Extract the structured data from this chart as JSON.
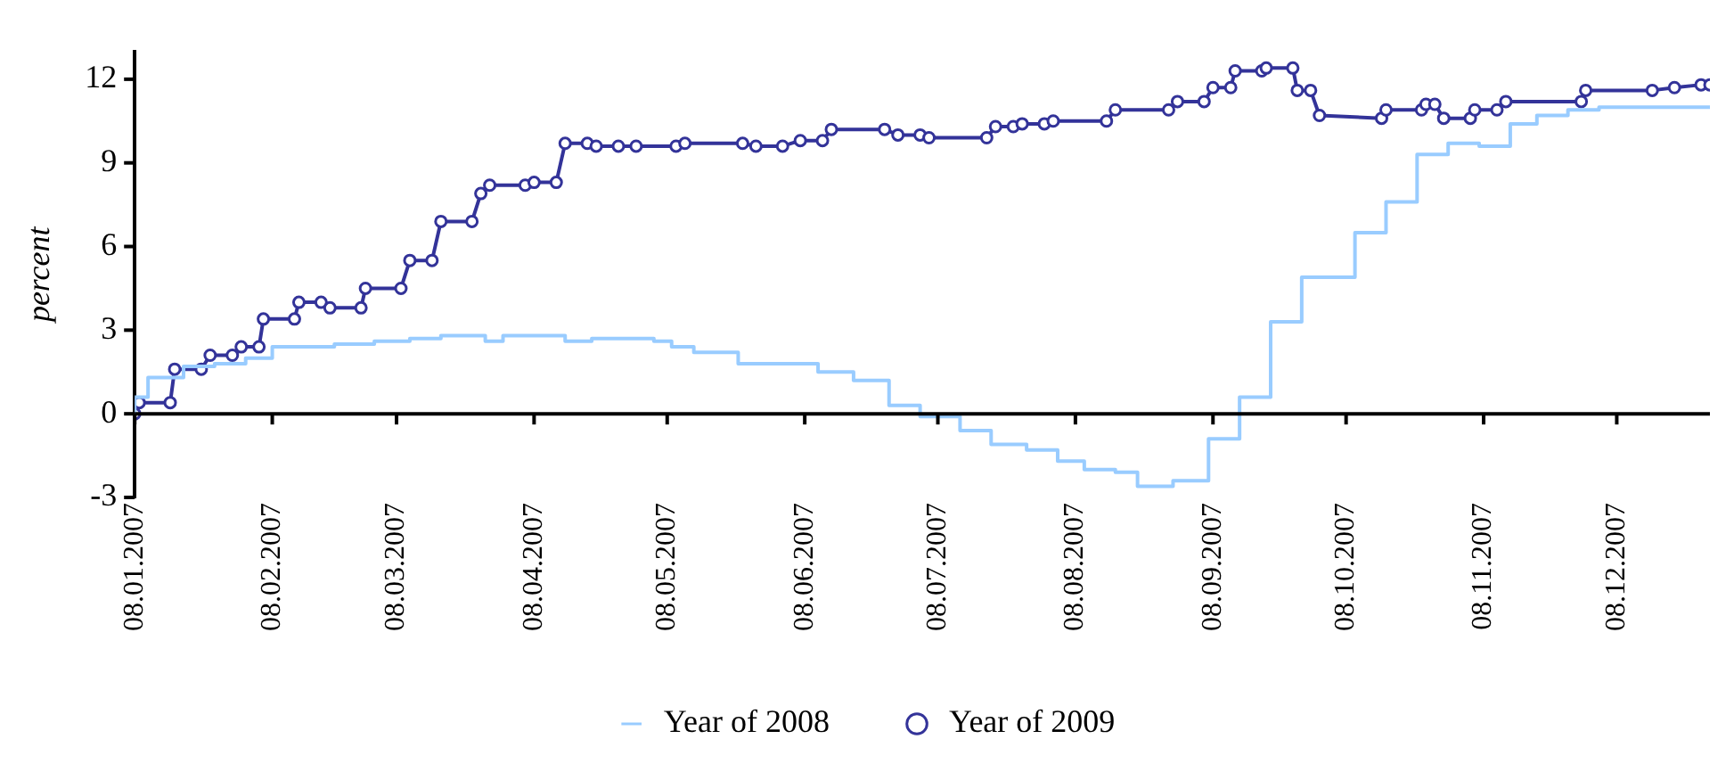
{
  "chart_data": {
    "type": "line",
    "ylabel": "percent",
    "xlim": [
      "2007-01-08",
      "2007-12-29"
    ],
    "xticks": [
      {
        "value": "2007-01-08",
        "label": "08.01.2007"
      },
      {
        "value": "2007-02-08",
        "label": "08.02.2007"
      },
      {
        "value": "2007-03-08",
        "label": "08.03.2007"
      },
      {
        "value": "2007-04-08",
        "label": "08.04.2007"
      },
      {
        "value": "2007-05-08",
        "label": "08.05.2007"
      },
      {
        "value": "2007-06-08",
        "label": "08.06.2007"
      },
      {
        "value": "2007-07-08",
        "label": "08.07.2007"
      },
      {
        "value": "2007-08-08",
        "label": "08.08.2007"
      },
      {
        "value": "2007-09-08",
        "label": "08.09.2007"
      },
      {
        "value": "2007-10-08",
        "label": "08.10.2007"
      },
      {
        "value": "2007-11-08",
        "label": "08.11.2007"
      },
      {
        "value": "2007-12-08",
        "label": "08.12.2007"
      }
    ],
    "ylim": [
      -3,
      13
    ],
    "yticks": [
      -3,
      0,
      3,
      6,
      9,
      12
    ],
    "legend": "bottom",
    "series": [
      {
        "name": "Year of 2008",
        "type": "step",
        "color": "#99ccff",
        "marker": "none",
        "x": [
          "2007-01-08",
          "2007-01-11",
          "2007-01-19",
          "2007-01-26",
          "2007-02-02",
          "2007-02-08",
          "2007-02-22",
          "2007-03-03",
          "2007-03-11",
          "2007-03-18",
          "2007-03-28",
          "2007-04-01",
          "2007-04-15",
          "2007-04-21",
          "2007-05-05",
          "2007-05-09",
          "2007-05-14",
          "2007-05-24",
          "2007-06-11",
          "2007-06-19",
          "2007-06-27",
          "2007-07-04",
          "2007-07-13",
          "2007-07-20",
          "2007-07-28",
          "2007-08-04",
          "2007-08-10",
          "2007-08-17",
          "2007-08-22",
          "2007-08-30",
          "2007-09-07",
          "2007-09-14",
          "2007-09-21",
          "2007-09-28",
          "2007-10-10",
          "2007-10-17",
          "2007-10-24",
          "2007-10-31",
          "2007-11-07",
          "2007-11-14",
          "2007-11-20",
          "2007-11-27",
          "2007-12-04",
          "2007-12-10",
          "2007-12-29"
        ],
        "values": [
          0,
          0.6,
          1.3,
          1.7,
          1.8,
          2.0,
          2.4,
          2.5,
          2.6,
          2.7,
          2.8,
          2.6,
          2.8,
          2.6,
          2.7,
          2.6,
          2.4,
          2.2,
          1.8,
          1.5,
          1.2,
          0.3,
          -0.1,
          -0.6,
          -1.1,
          -1.3,
          -1.7,
          -2.0,
          -2.1,
          -2.6,
          -2.4,
          -0.9,
          0.6,
          3.3,
          4.9,
          6.5,
          7.6,
          9.3,
          9.7,
          9.6,
          10.4,
          10.7,
          10.9,
          11.0,
          11.0
        ]
      },
      {
        "name": "Year of 2009",
        "type": "line",
        "color": "#333399",
        "marker": "circle",
        "x": [
          "2007-01-08",
          "2007-01-09",
          "2007-01-16",
          "2007-01-17",
          "2007-01-23",
          "2007-01-25",
          "2007-01-30",
          "2007-02-01",
          "2007-02-05",
          "2007-02-06",
          "2007-02-13",
          "2007-02-14",
          "2007-02-19",
          "2007-02-21",
          "2007-02-28",
          "2007-03-01",
          "2007-03-09",
          "2007-03-11",
          "2007-03-16",
          "2007-03-18",
          "2007-03-25",
          "2007-03-27",
          "2007-03-29",
          "2007-04-06",
          "2007-04-08",
          "2007-04-13",
          "2007-04-15",
          "2007-04-20",
          "2007-04-22",
          "2007-04-27",
          "2007-05-01",
          "2007-05-10",
          "2007-05-12",
          "2007-05-25",
          "2007-05-28",
          "2007-06-03",
          "2007-06-07",
          "2007-06-12",
          "2007-06-14",
          "2007-06-26",
          "2007-06-29",
          "2007-07-04",
          "2007-07-06",
          "2007-07-19",
          "2007-07-21",
          "2007-07-25",
          "2007-07-27",
          "2007-08-01",
          "2007-08-03",
          "2007-08-15",
          "2007-08-17",
          "2007-08-29",
          "2007-08-31",
          "2007-09-06",
          "2007-09-08",
          "2007-09-12",
          "2007-09-13",
          "2007-09-19",
          "2007-09-20",
          "2007-09-26",
          "2007-09-27",
          "2007-09-30",
          "2007-10-02",
          "2007-10-16",
          "2007-10-17",
          "2007-10-25",
          "2007-10-26",
          "2007-10-28",
          "2007-10-30",
          "2007-11-05",
          "2007-11-06",
          "2007-11-11",
          "2007-11-13",
          "2007-11-30",
          "2007-12-01",
          "2007-12-16",
          "2007-12-21",
          "2007-12-27",
          "2007-12-29"
        ],
        "values": [
          0,
          0.4,
          0.4,
          1.6,
          1.6,
          2.1,
          2.1,
          2.4,
          2.4,
          3.4,
          3.4,
          4.0,
          4.0,
          3.8,
          3.8,
          4.5,
          4.5,
          5.5,
          5.5,
          6.9,
          6.9,
          7.9,
          8.2,
          8.2,
          8.3,
          8.3,
          9.7,
          9.7,
          9.6,
          9.6,
          9.6,
          9.6,
          9.7,
          9.7,
          9.6,
          9.6,
          9.8,
          9.8,
          10.2,
          10.2,
          10.0,
          10.0,
          9.9,
          9.9,
          10.3,
          10.3,
          10.4,
          10.4,
          10.5,
          10.5,
          10.9,
          10.9,
          11.2,
          11.2,
          11.7,
          11.7,
          12.3,
          12.3,
          12.4,
          12.4,
          11.6,
          11.6,
          10.7,
          10.6,
          10.9,
          10.9,
          11.1,
          11.1,
          10.6,
          10.6,
          10.9,
          10.9,
          11.2,
          11.2,
          11.6,
          11.6,
          11.7,
          11.8,
          11.8
        ]
      }
    ]
  }
}
